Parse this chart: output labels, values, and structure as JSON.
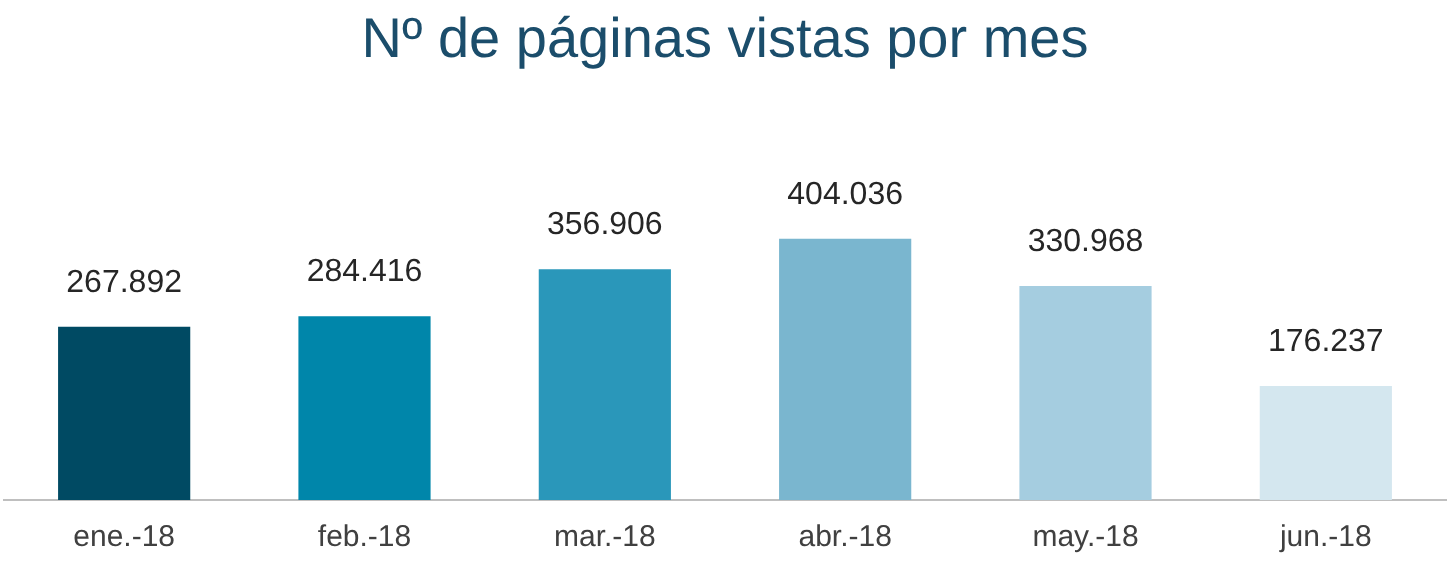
{
  "chart_data": {
    "type": "bar",
    "title": "Nº de páginas vistas por mes",
    "categories": [
      "ene.-18",
      "feb.-18",
      "mar.-18",
      "abr.-18",
      "may.-18",
      "jun.-18"
    ],
    "values": [
      267892,
      284416,
      356906,
      404036,
      330968,
      176237
    ],
    "colors": [
      "#004a63",
      "#0086aa",
      "#2a97ba",
      "#7ab6cf",
      "#a5cde0",
      "#d4e7ef"
    ],
    "value_labels": [
      "267.892",
      "284.416",
      "356.906",
      "404.036",
      "330.968",
      "176.237"
    ],
    "grid": false,
    "legend": false
  }
}
